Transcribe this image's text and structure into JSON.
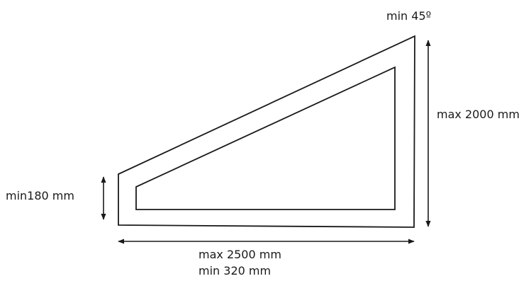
{
  "labels": {
    "angle": "min 45º",
    "height": "max 2000 mm",
    "short_side": "min180 mm",
    "width_max": "max 2500 mm",
    "width_min": "min 320 mm"
  },
  "colors": {
    "stroke": "#1a1a1a",
    "background": "#ffffff"
  }
}
